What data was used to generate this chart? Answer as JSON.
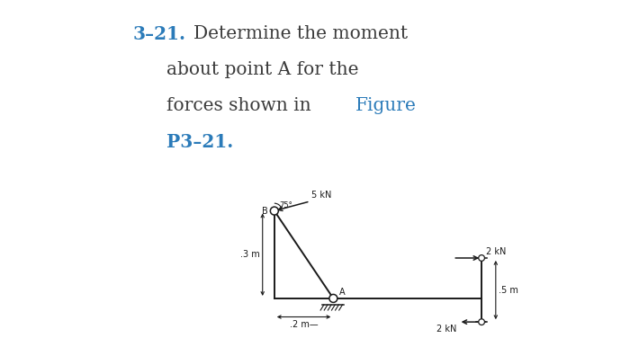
{
  "title_number": "3–21.",
  "title_text": "Determine the moment",
  "title_line2": "about point A for the",
  "title_line3": "forces shown in ",
  "title_figure": "Figure",
  "title_line4": "P3–21.",
  "title_color": "#2b7bb9",
  "text_color": "#3a3a3a",
  "fig_bg": "#ffffff",
  "label_5kN": "5 kN",
  "label_2kN_top": "2 kN",
  "label_2kN_bot": "2 kN",
  "label_B": "B",
  "label_A": "A",
  "label_75": "75°",
  "label_3m": ".3 m",
  "label_2m": ".2 m—",
  "label_5m": ".5 m",
  "fs_title": 14.5,
  "fs_label": 7.0
}
